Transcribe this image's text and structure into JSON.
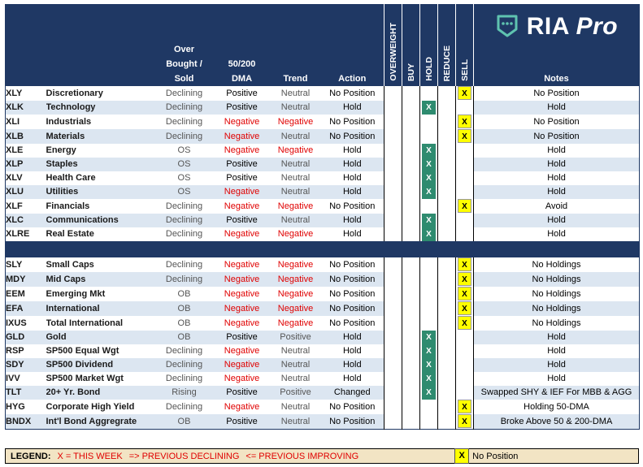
{
  "header": {
    "overbought": "Over\nBought /\nSold",
    "dma": "50/200\nDMA",
    "trend": "Trend",
    "action": "Action",
    "cols": [
      "OVERWEIGHT",
      "BUY",
      "HOLD",
      "REDUCE",
      "SELL"
    ],
    "logo_ria": "RIA",
    "logo_pro": "Pro",
    "notes": "Notes"
  },
  "colors": {
    "navy": "#1f3864",
    "alt_row": "#dce6f1",
    "hold_green": "#2e8b6f",
    "sell_yellow": "#ffff00",
    "negative_red": "#e00000",
    "legend_bg": "#f2e4c4"
  },
  "sectors": [
    {
      "ticker": "XLY",
      "name": "Discretionary",
      "ob": "Declining",
      "dma": "Positive",
      "trend": "Neutral",
      "action": "No Position",
      "mark": "SELL",
      "note": "No Position"
    },
    {
      "ticker": "XLK",
      "name": "Technology",
      "ob": "Declining",
      "dma": "Positive",
      "trend": "Neutral",
      "action": "Hold",
      "mark": "HOLD",
      "note": "Hold"
    },
    {
      "ticker": "XLI",
      "name": "Industrials",
      "ob": "Declining",
      "dma": "Negative",
      "trend": "Negative",
      "action": "No Position",
      "mark": "SELL",
      "note": "No Position"
    },
    {
      "ticker": "XLB",
      "name": "Materials",
      "ob": "Declining",
      "dma": "Negative",
      "trend": "Neutral",
      "action": "No Position",
      "mark": "SELL",
      "note": "No Position"
    },
    {
      "ticker": "XLE",
      "name": "Energy",
      "ob": "OS",
      "dma": "Negative",
      "trend": "Negative",
      "action": "Hold",
      "mark": "HOLD",
      "note": "Hold"
    },
    {
      "ticker": "XLP",
      "name": "Staples",
      "ob": "OS",
      "dma": "Positive",
      "trend": "Neutral",
      "action": "Hold",
      "mark": "HOLD",
      "note": "Hold"
    },
    {
      "ticker": "XLV",
      "name": "Health Care",
      "ob": "OS",
      "dma": "Positive",
      "trend": "Neutral",
      "action": "Hold",
      "mark": "HOLD",
      "note": "Hold"
    },
    {
      "ticker": "XLU",
      "name": "Utilities",
      "ob": "OS",
      "dma": "Negative",
      "trend": "Neutral",
      "action": "Hold",
      "mark": "HOLD",
      "note": "Hold"
    },
    {
      "ticker": "XLF",
      "name": "Financials",
      "ob": "Declining",
      "dma": "Negative",
      "trend": "Negative",
      "action": "No Position",
      "mark": "SELL",
      "note": "Avoid"
    },
    {
      "ticker": "XLC",
      "name": "Communications",
      "ob": "Declining",
      "dma": "Positive",
      "trend": "Neutral",
      "action": "Hold",
      "mark": "HOLD",
      "note": "Hold"
    },
    {
      "ticker": "XLRE",
      "name": "Real Estate",
      "ob": "Declining",
      "dma": "Negative",
      "trend": "Negative",
      "action": "Hold",
      "mark": "HOLD",
      "note": "Hold"
    }
  ],
  "markets": [
    {
      "ticker": "SLY",
      "name": "Small Caps",
      "ob": "Declining",
      "dma": "Negative",
      "trend": "Negative",
      "action": "No Position",
      "mark": "SELL",
      "note": "No Holdings"
    },
    {
      "ticker": "MDY",
      "name": "Mid Caps",
      "ob": "Declining",
      "dma": "Negative",
      "trend": "Negative",
      "action": "No Position",
      "mark": "SELL",
      "note": "No Holdings"
    },
    {
      "ticker": "EEM",
      "name": "Emerging Mkt",
      "ob": "OB",
      "dma": "Negative",
      "trend": "Negative",
      "action": "No Position",
      "mark": "SELL",
      "note": "No Holdings"
    },
    {
      "ticker": "EFA",
      "name": "International",
      "ob": "OB",
      "dma": "Negative",
      "trend": "Negative",
      "action": "No Position",
      "mark": "SELL",
      "note": "No Holdings"
    },
    {
      "ticker": "IXUS",
      "name": "Total International",
      "ob": "OB",
      "dma": "Negative",
      "trend": "Negative",
      "action": "No Position",
      "mark": "SELL",
      "note": "No Holdings"
    },
    {
      "ticker": "GLD",
      "name": "Gold",
      "ob": "OB",
      "dma": "Positive",
      "trend": "Positive",
      "action": "Hold",
      "mark": "HOLD",
      "note": "Hold"
    },
    {
      "ticker": "RSP",
      "name": "SP500 Equal Wgt",
      "ob": "Declining",
      "dma": "Negative",
      "trend": "Neutral",
      "action": "Hold",
      "mark": "HOLD",
      "note": "Hold"
    },
    {
      "ticker": "SDY",
      "name": "SP500 Dividend",
      "ob": "Declining",
      "dma": "Negative",
      "trend": "Neutral",
      "action": "Hold",
      "mark": "HOLD",
      "note": "Hold"
    },
    {
      "ticker": "IVV",
      "name": "SP500 Market Wgt",
      "ob": "Declining",
      "dma": "Negative",
      "trend": "Neutral",
      "action": "Hold",
      "mark": "HOLD",
      "note": "Hold"
    },
    {
      "ticker": "TLT",
      "name": "20+ Yr. Bond",
      "ob": "Rising",
      "dma": "Positive",
      "trend": "Positive",
      "action": "Changed",
      "mark": "HOLD",
      "note": "Swapped SHY & IEF For MBB & AGG"
    },
    {
      "ticker": "HYG",
      "name": "Corporate High Yield",
      "ob": "Declining",
      "dma": "Negative",
      "trend": "Neutral",
      "action": "No Position",
      "mark": "SELL",
      "note": "Holding 50-DMA"
    },
    {
      "ticker": "BNDX",
      "name": "Int'l Bond Aggregrate",
      "ob": "OB",
      "dma": "Positive",
      "trend": "Neutral",
      "action": "No Position",
      "mark": "SELL",
      "note": "Broke Above 50 & 200-DMA"
    }
  ],
  "mark_text": "X",
  "legend": {
    "title": "LEGEND:",
    "this_week": "X = THIS WEEK",
    "prev_declining": "=> PREVIOUS DECLINING",
    "prev_improving": "<= PREVIOUS IMPROVING",
    "box_mark": "X",
    "box_label": "No Position"
  }
}
